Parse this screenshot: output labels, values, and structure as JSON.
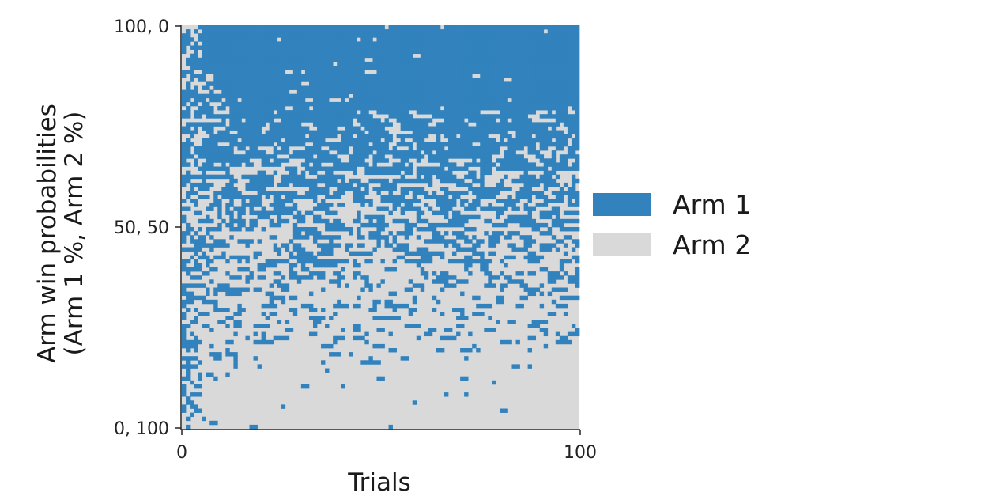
{
  "chart_data": {
    "type": "heatmap",
    "title": "",
    "xlabel": "Trials",
    "ylabel_line1": "Arm win probabilities",
    "ylabel_line2": "(Arm 1 %, Arm 2 %)",
    "x_ticks": [
      "0",
      "100"
    ],
    "y_ticks": [
      "100, 0",
      "50, 50",
      "0, 100"
    ],
    "xlim": [
      0,
      100
    ],
    "ylim": [
      0,
      100
    ],
    "n_trials": 100,
    "n_conditions": 100,
    "row_order": "top row = Arm 1 100% / Arm 2 0%; bottom row = Arm 1 0% / Arm 2 100%",
    "cell_value_meaning": "arm chosen on each trial (1 = Arm 1, 2 = Arm 2)",
    "legend": [
      {
        "label": "Arm 1",
        "color": "#3182bd",
        "value": 1
      },
      {
        "label": "Arm 2",
        "color": "#d9d9d9",
        "value": 2
      }
    ],
    "legend_position": "right"
  }
}
